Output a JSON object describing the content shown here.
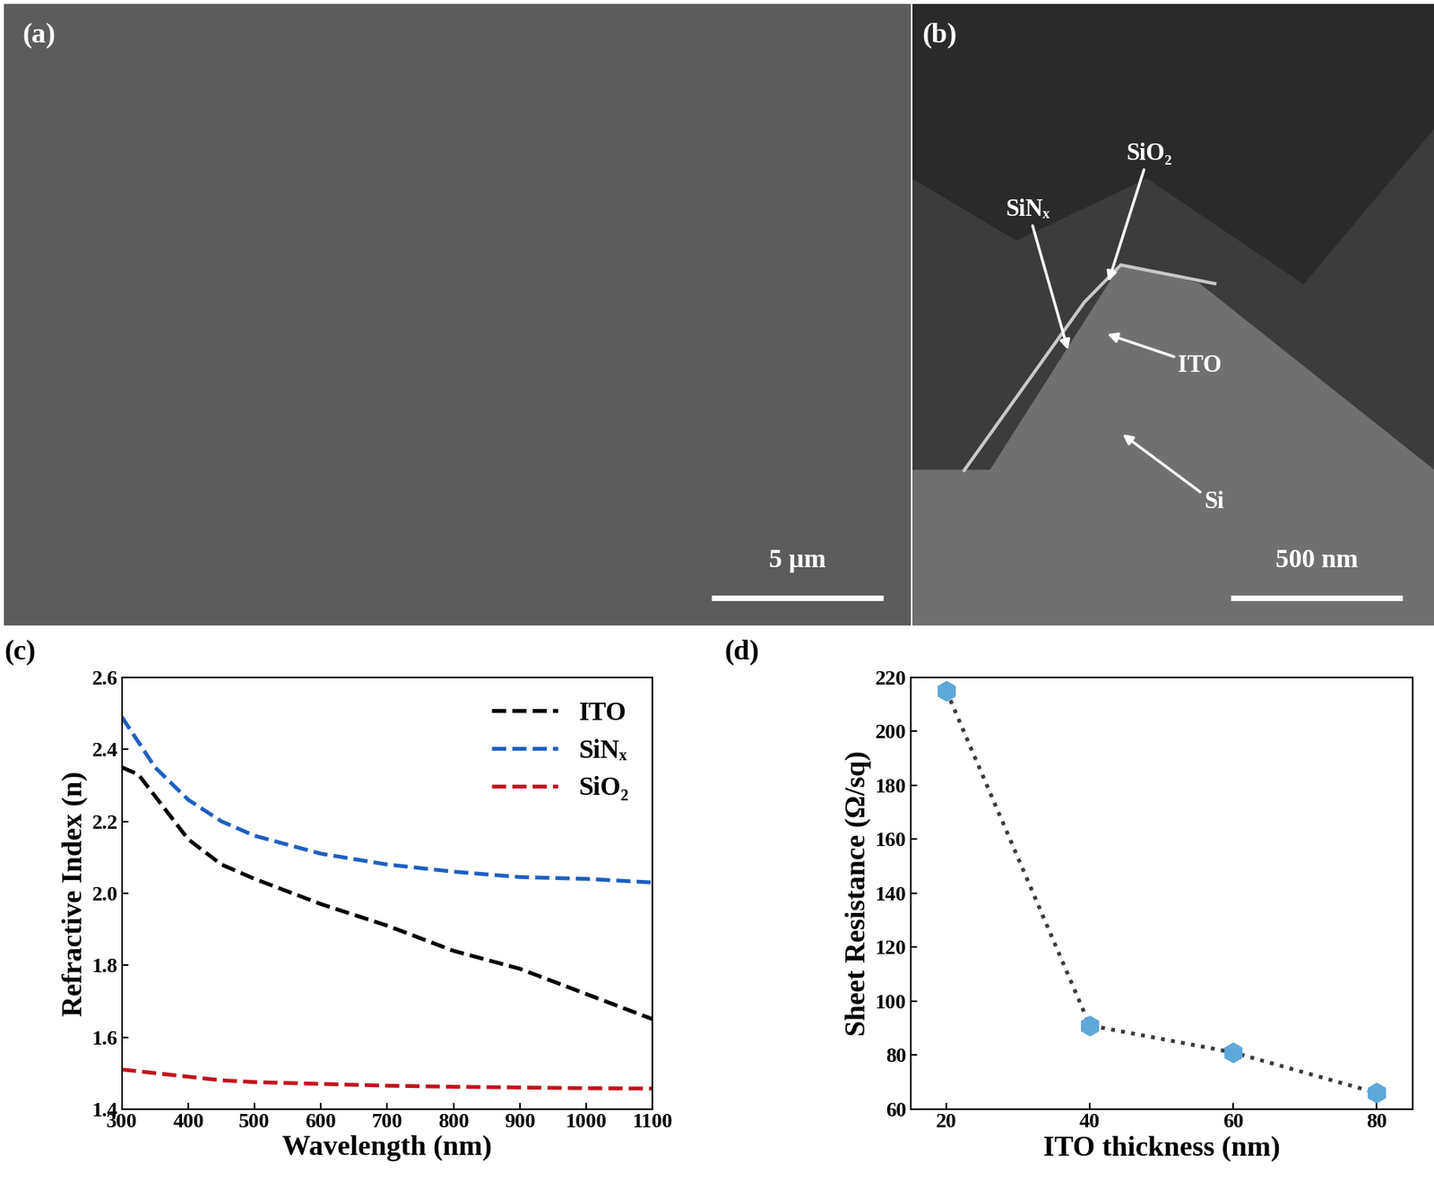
{
  "panels": [
    {
      "label": "(a)",
      "scale_bar": "5 µm"
    },
    {
      "label": "(b)",
      "scale_bar": "500 nm",
      "annotations": [
        "SiO₂",
        "SiNₓ",
        "ITO",
        "Si"
      ]
    }
  ],
  "chart_data": [
    {
      "label": "(c)",
      "type": "line",
      "x_label": "Wavelength (nm)",
      "y_label": "Refractive Index (n)",
      "x": [
        300,
        325,
        350,
        400,
        450,
        500,
        600,
        700,
        800,
        900,
        1000,
        1100
      ],
      "series": [
        {
          "name": "ITO",
          "color": "#000000",
          "line_style": "dashed",
          "values": [
            2.35,
            2.33,
            2.27,
            2.15,
            2.08,
            2.04,
            1.97,
            1.91,
            1.84,
            1.79,
            1.72,
            1.65
          ]
        },
        {
          "name": "SiNₓ",
          "color": "#1f5fbf",
          "line_style": "dashed",
          "values": [
            2.49,
            2.42,
            2.35,
            2.26,
            2.2,
            2.16,
            2.11,
            2.08,
            2.06,
            2.045,
            2.04,
            2.03
          ]
        },
        {
          "name": "SiO₂",
          "color": "#c0151f",
          "line_style": "dashed",
          "values": [
            1.51,
            1.505,
            1.5,
            1.49,
            1.48,
            1.475,
            1.47,
            1.465,
            1.462,
            1.46,
            1.458,
            1.457
          ]
        }
      ],
      "xlim": [
        300,
        1100
      ],
      "ylim": [
        1.4,
        2.6
      ],
      "xticks": [
        300,
        400,
        500,
        600,
        700,
        800,
        900,
        1000,
        1100
      ],
      "yticks": [
        1.4,
        1.6,
        1.8,
        2.0,
        2.2,
        2.4,
        2.6
      ],
      "legend": "upper right"
    },
    {
      "label": "(d)",
      "type": "line",
      "x_label": "ITO thickness (nm)",
      "y_label": "Sheet Resistance (Ω/sq)",
      "x": [
        20,
        40,
        60,
        80
      ],
      "values": [
        215,
        91,
        81,
        66
      ],
      "color": "#5ea7d9",
      "marker": "hexagon",
      "line_style": "dotted",
      "xlim": [
        15,
        85
      ],
      "ylim": [
        60,
        220
      ],
      "xticks": [
        20,
        40,
        60,
        80
      ],
      "yticks": [
        60,
        80,
        100,
        120,
        140,
        160,
        180,
        200,
        220
      ]
    }
  ]
}
